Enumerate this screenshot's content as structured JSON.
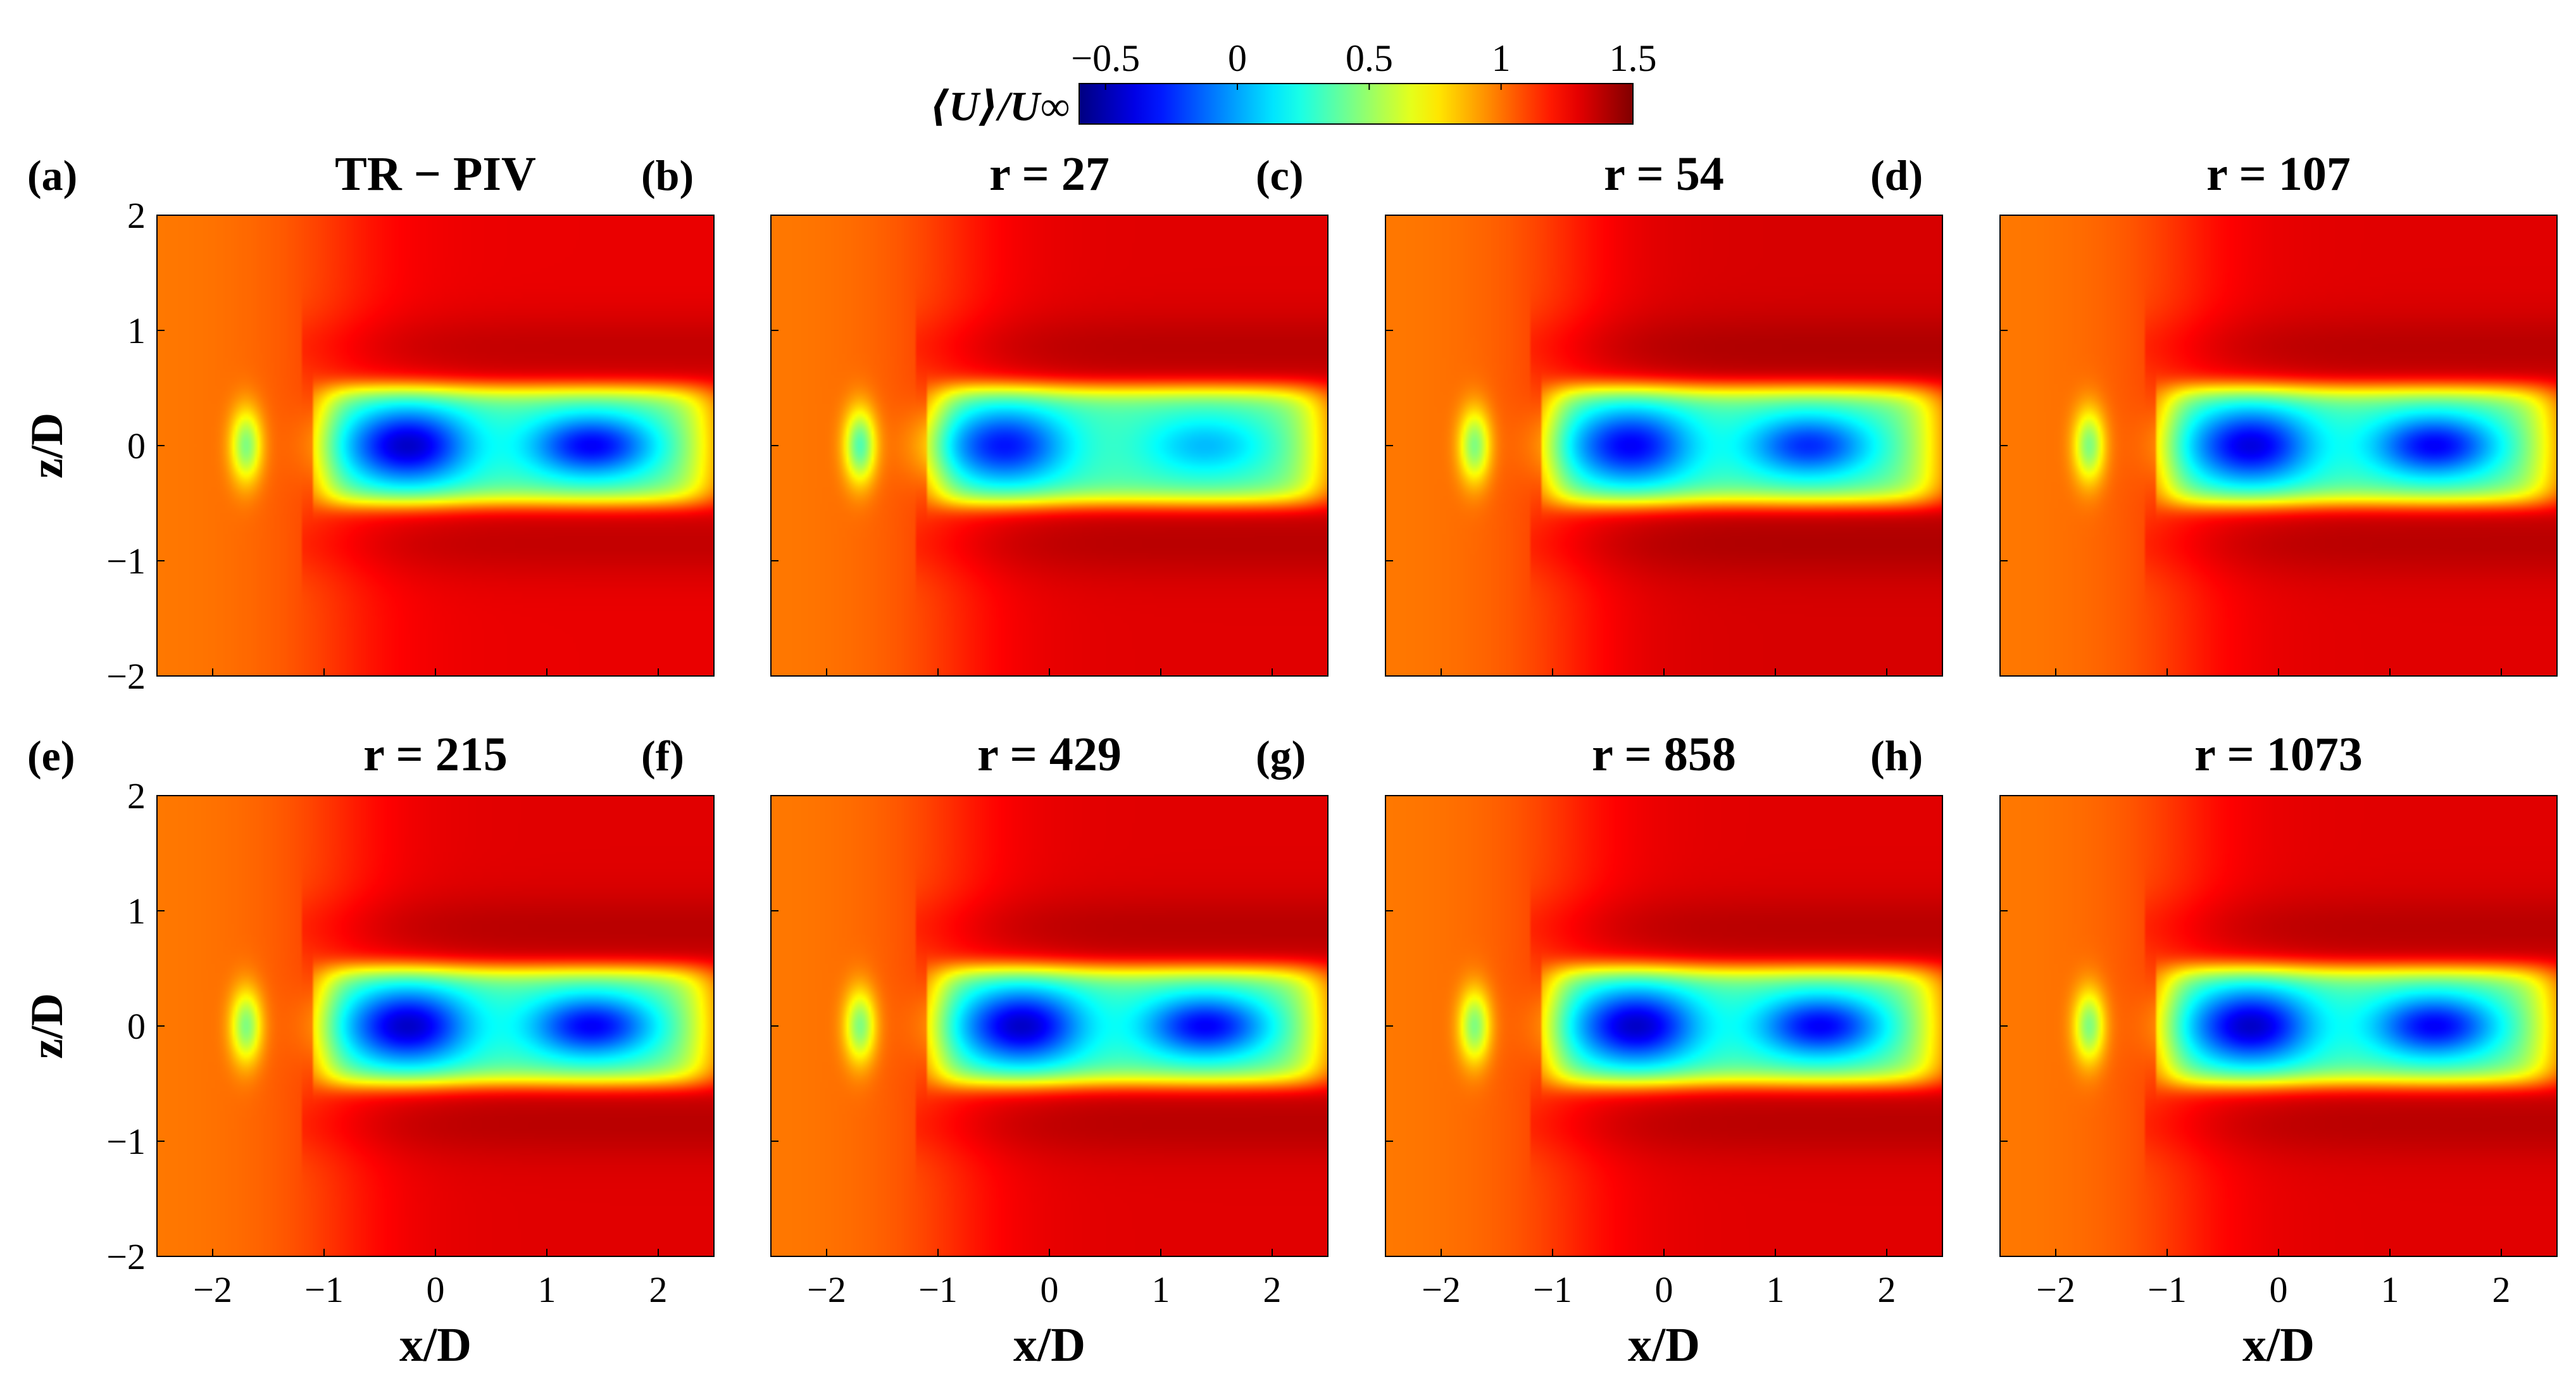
{
  "colorbar": {
    "label": "⟨U⟩/U∞",
    "ticks": [
      "−0.5",
      "0",
      "0.5",
      "1",
      "1.5"
    ],
    "tick_values": [
      -0.5,
      0,
      0.5,
      1,
      1.5
    ],
    "range": [
      -0.6,
      1.5
    ],
    "colormap": "jet",
    "colors": [
      "#00008f",
      "#0000ff",
      "#0080ff",
      "#00ffff",
      "#80ff80",
      "#ffff00",
      "#ff8000",
      "#ff0000",
      "#800000"
    ]
  },
  "axes": {
    "xlabel": "x/D",
    "ylabel": "z/D",
    "xticks": [
      "−2",
      "−1",
      "0",
      "1",
      "2"
    ],
    "xtick_values": [
      -2,
      -1,
      0,
      1,
      2
    ],
    "yticks": [
      "2",
      "1",
      "0",
      "−1",
      "−2"
    ],
    "ytick_values": [
      2,
      1,
      0,
      -1,
      -2
    ],
    "xlim": [
      -2.5,
      2.5
    ],
    "ylim": [
      -2,
      2
    ]
  },
  "chart_data": [
    {
      "type": "heatmap",
      "panel": "(a)",
      "title": "TR − PIV",
      "xlabel": "x/D",
      "ylabel": "z/D",
      "xlim": [
        -2.5,
        2.5
      ],
      "ylim": [
        -2,
        2
      ],
      "colorbar_range": [
        -0.6,
        1.5
      ],
      "freestream": 1.28,
      "upstream_value": 1.05,
      "features": [
        {
          "name": "upstream-blob",
          "x": -1.7,
          "z": 0,
          "min_value": 0.45
        },
        {
          "name": "recirculation-core-1",
          "x": -0.25,
          "z": 0,
          "min_value": -0.45
        },
        {
          "name": "recirculation-core-2",
          "x": 1.4,
          "z": 0,
          "min_value": -0.35
        }
      ]
    },
    {
      "type": "heatmap",
      "panel": "(b)",
      "title": "r = 27",
      "xlabel": "x/D",
      "ylabel": "z/D",
      "xlim": [
        -2.5,
        2.5
      ],
      "ylim": [
        -2,
        2
      ],
      "colorbar_range": [
        -0.6,
        1.5
      ],
      "freestream": 1.3,
      "upstream_value": 1.05,
      "features": [
        {
          "name": "upstream-blob",
          "x": -1.7,
          "z": 0,
          "min_value": 0.35
        },
        {
          "name": "recirculation-core-1",
          "x": -0.4,
          "z": 0,
          "min_value": -0.3
        },
        {
          "name": "recirculation-core-2",
          "x": 1.4,
          "z": 0,
          "min_value": 0.05
        }
      ]
    },
    {
      "type": "heatmap",
      "panel": "(c)",
      "title": "r = 54",
      "xlabel": "x/D",
      "ylabel": "z/D",
      "xlim": [
        -2.5,
        2.5
      ],
      "ylim": [
        -2,
        2
      ],
      "colorbar_range": [
        -0.6,
        1.5
      ],
      "freestream": 1.32,
      "upstream_value": 1.05,
      "features": [
        {
          "name": "upstream-blob",
          "x": -1.7,
          "z": 0,
          "min_value": 0.45
        },
        {
          "name": "recirculation-core-1",
          "x": -0.3,
          "z": 0,
          "min_value": -0.35
        },
        {
          "name": "recirculation-core-2",
          "x": 1.3,
          "z": 0,
          "min_value": -0.25
        }
      ]
    },
    {
      "type": "heatmap",
      "panel": "(d)",
      "title": "r = 107",
      "xlabel": "x/D",
      "ylabel": "z/D",
      "xlim": [
        -2.5,
        2.5
      ],
      "ylim": [
        -2,
        2
      ],
      "colorbar_range": [
        -0.6,
        1.5
      ],
      "freestream": 1.3,
      "upstream_value": 1.05,
      "features": [
        {
          "name": "upstream-blob",
          "x": -1.7,
          "z": 0,
          "min_value": 0.45
        },
        {
          "name": "recirculation-core-1",
          "x": -0.25,
          "z": 0,
          "min_value": -0.4
        },
        {
          "name": "recirculation-core-2",
          "x": 1.4,
          "z": 0,
          "min_value": -0.35
        }
      ]
    },
    {
      "type": "heatmap",
      "panel": "(e)",
      "title": "r = 215",
      "xlabel": "x/D",
      "ylabel": "z/D",
      "xlim": [
        -2.5,
        2.5
      ],
      "ylim": [
        -2,
        2
      ],
      "colorbar_range": [
        -0.6,
        1.5
      ],
      "freestream": 1.3,
      "upstream_value": 1.05,
      "features": [
        {
          "name": "upstream-blob",
          "x": -1.7,
          "z": 0,
          "min_value": 0.45
        },
        {
          "name": "recirculation-core-1",
          "x": -0.25,
          "z": 0,
          "min_value": -0.45
        },
        {
          "name": "recirculation-core-2",
          "x": 1.4,
          "z": 0,
          "min_value": -0.35
        }
      ]
    },
    {
      "type": "heatmap",
      "panel": "(f)",
      "title": "r = 429",
      "xlabel": "x/D",
      "ylabel": "z/D",
      "xlim": [
        -2.5,
        2.5
      ],
      "ylim": [
        -2,
        2
      ],
      "colorbar_range": [
        -0.6,
        1.5
      ],
      "freestream": 1.3,
      "upstream_value": 1.05,
      "features": [
        {
          "name": "upstream-blob",
          "x": -1.7,
          "z": 0,
          "min_value": 0.45
        },
        {
          "name": "recirculation-core-1",
          "x": -0.25,
          "z": 0,
          "min_value": -0.45
        },
        {
          "name": "recirculation-core-2",
          "x": 1.4,
          "z": 0,
          "min_value": -0.35
        }
      ]
    },
    {
      "type": "heatmap",
      "panel": "(g)",
      "title": "r = 858",
      "xlabel": "x/D",
      "ylabel": "z/D",
      "xlim": [
        -2.5,
        2.5
      ],
      "ylim": [
        -2,
        2
      ],
      "colorbar_range": [
        -0.6,
        1.5
      ],
      "freestream": 1.3,
      "upstream_value": 1.05,
      "features": [
        {
          "name": "upstream-blob",
          "x": -1.7,
          "z": 0,
          "min_value": 0.45
        },
        {
          "name": "recirculation-core-1",
          "x": -0.25,
          "z": 0,
          "min_value": -0.45
        },
        {
          "name": "recirculation-core-2",
          "x": 1.4,
          "z": 0,
          "min_value": -0.35
        }
      ]
    },
    {
      "type": "heatmap",
      "panel": "(h)",
      "title": "r = 1073",
      "xlabel": "x/D",
      "ylabel": "z/D",
      "xlim": [
        -2.5,
        2.5
      ],
      "ylim": [
        -2,
        2
      ],
      "colorbar_range": [
        -0.6,
        1.5
      ],
      "freestream": 1.3,
      "upstream_value": 1.05,
      "features": [
        {
          "name": "upstream-blob",
          "x": -1.7,
          "z": 0,
          "min_value": 0.45
        },
        {
          "name": "recirculation-core-1",
          "x": -0.25,
          "z": 0,
          "min_value": -0.45
        },
        {
          "name": "recirculation-core-2",
          "x": 1.4,
          "z": 0,
          "min_value": -0.35
        }
      ]
    }
  ]
}
